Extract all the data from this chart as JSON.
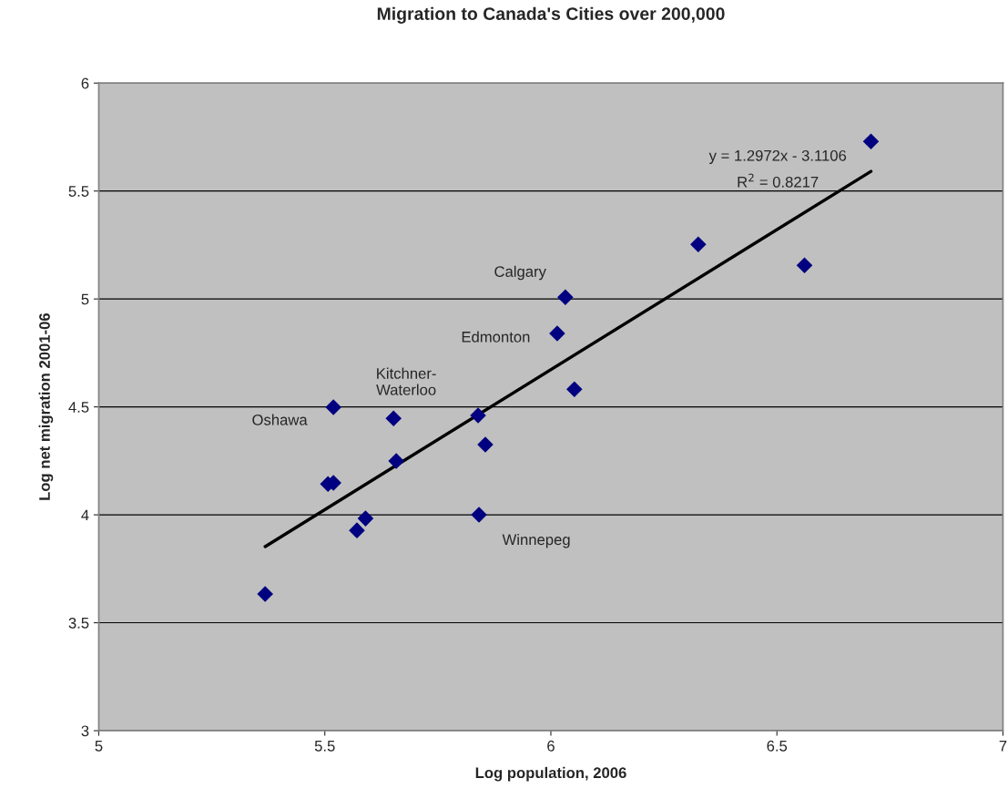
{
  "chart_data": {
    "type": "scatter",
    "title": "Migration to Canada's Cities over 200,000",
    "xlabel": "Log population, 2006",
    "ylabel": "Log net migration 2001-06",
    "series": [
      {
        "color": "#000080",
        "marker": "diamond",
        "x": [
          5.368,
          5.507,
          5.519,
          5.519,
          5.571,
          5.59,
          5.652,
          5.658,
          5.839,
          5.841,
          5.855,
          6.014,
          6.032,
          6.052,
          6.326,
          6.561,
          6.708
        ],
        "values": [
          3.633,
          4.143,
          4.148,
          4.498,
          3.928,
          3.983,
          4.447,
          4.249,
          4.46,
          4.0,
          4.325,
          4.84,
          5.008,
          4.582,
          5.253,
          5.156,
          5.73
        ]
      },
      {
        "type": "line",
        "color": "#000000",
        "marker": "none",
        "line_style": "solid",
        "x": [
          5.368,
          6.708
        ],
        "values": [
          3.853,
          5.591
        ]
      }
    ],
    "annotations": [
      "y = 1.2972x - 3.1106",
      "R$^{2}$ = 0.8217",
      "Calgary",
      "Edmonton",
      "Kitchner-\nWaterloo",
      "Oshawa",
      "Winnepeg"
    ],
    "xlim": [
      5,
      7
    ],
    "ylim": [
      3,
      6
    ],
    "xticks": [
      5,
      5.5,
      6,
      6.5,
      7
    ],
    "yticks": [
      3,
      3.5,
      4,
      4.5,
      5,
      5.5,
      6
    ],
    "grid": "y",
    "legend": false
  }
}
